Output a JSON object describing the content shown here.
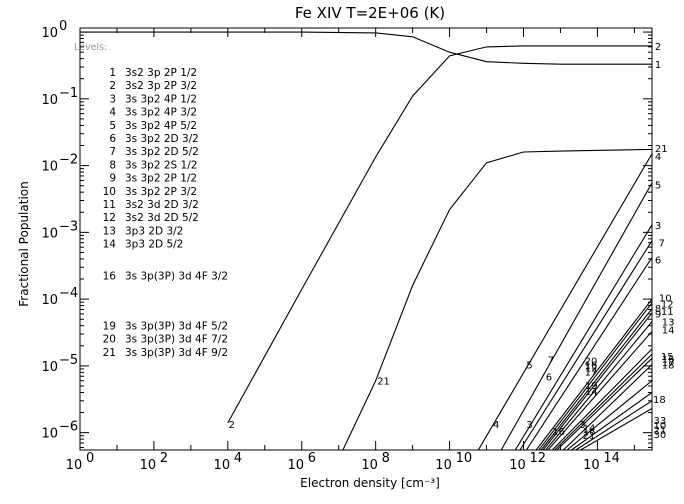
{
  "chart_data": {
    "type": "line",
    "title": "Fe XIV T=2E+06 (K)",
    "xlabel": "Electron density [cm⁻³]",
    "ylabel": "Fractional Population",
    "x_scale": "log",
    "y_scale": "log",
    "xlim": [
      1,
      3000000000000000.0
    ],
    "ylim": [
      5.5e-07,
      1.15
    ],
    "x_ticks": [
      {
        "value": 1,
        "base": "10",
        "exp": "0"
      },
      {
        "value": 100.0,
        "base": "10",
        "exp": "2"
      },
      {
        "value": 10000.0,
        "base": "10",
        "exp": "4"
      },
      {
        "value": 1000000.0,
        "base": "10",
        "exp": "6"
      },
      {
        "value": 100000000.0,
        "base": "10",
        "exp": "8"
      },
      {
        "value": 10000000000.0,
        "base": "10",
        "exp": "10"
      },
      {
        "value": 1000000000000.0,
        "base": "10",
        "exp": "12"
      },
      {
        "value": 100000000000000.0,
        "base": "10",
        "exp": "14"
      }
    ],
    "y_ticks": [
      {
        "value": 1,
        "base": "10",
        "exp": "0"
      },
      {
        "value": 0.1,
        "base": "10",
        "exp": "−1"
      },
      {
        "value": 0.01,
        "base": "10",
        "exp": "−2"
      },
      {
        "value": 0.001,
        "base": "10",
        "exp": "−3"
      },
      {
        "value": 0.0001,
        "base": "10",
        "exp": "−4"
      },
      {
        "value": 1e-05,
        "base": "10",
        "exp": "−5"
      },
      {
        "value": 1e-06,
        "base": "10",
        "exp": "−6"
      }
    ],
    "legend": {
      "heading": "Levels:",
      "entries": [
        {
          "level": "1",
          "config": "3s2 3p 2P 1/2",
          "gap_before": 0
        },
        {
          "level": "2",
          "config": "3s2 3p 2P 3/2",
          "gap_before": 0
        },
        {
          "level": "3",
          "config": "3s 3p2 4P 1/2",
          "gap_before": 0
        },
        {
          "level": "4",
          "config": "3s 3p2 4P 3/2",
          "gap_before": 0
        },
        {
          "level": "5",
          "config": "3s 3p2 4P 5/2",
          "gap_before": 0
        },
        {
          "level": "6",
          "config": "3s 3p2 2D 3/2",
          "gap_before": 0
        },
        {
          "level": "7",
          "config": "3s 3p2 2D 5/2",
          "gap_before": 0
        },
        {
          "level": "8",
          "config": "3s 3p2 2S 1/2",
          "gap_before": 0
        },
        {
          "level": "9",
          "config": "3s 3p2 2P 1/2",
          "gap_before": 0
        },
        {
          "level": "10",
          "config": "3s 3p2 2P 3/2",
          "gap_before": 0
        },
        {
          "level": "11",
          "config": "3s2 3d 2D 3/2",
          "gap_before": 0
        },
        {
          "level": "12",
          "config": "3s2 3d 2D 5/2",
          "gap_before": 0
        },
        {
          "level": "13",
          "config": "3p3 2D 3/2",
          "gap_before": 0
        },
        {
          "level": "14",
          "config": "3p3 2D 5/2",
          "gap_before": 0
        },
        {
          "level": "16",
          "config": "3s 3p(3P) 3d 4F 3/2",
          "gap_before": 1
        },
        {
          "level": "19",
          "config": "3s 3p(3P) 3d 4F 5/2",
          "gap_before": 2
        },
        {
          "level": "20",
          "config": "3s 3p(3P) 3d 4F 7/2",
          "gap_before": 0
        },
        {
          "level": "21",
          "config": "3s 3p(3P) 3d 4F 9/2",
          "gap_before": 0
        }
      ]
    },
    "series": [
      {
        "name": "1",
        "x": [
          1,
          1000000.0,
          100000000.0,
          1000000000.0,
          10000000000.0,
          100000000000.0,
          1000000000000.0,
          10000000000000.0,
          3000000000000000.0
        ],
        "y": [
          1.0,
          1.0,
          0.97,
          0.85,
          0.5,
          0.36,
          0.34,
          0.33,
          0.33
        ]
      },
      {
        "name": "2",
        "x": [
          10000.0,
          1000000.0,
          100000000.0,
          1000000000.0,
          10000000000.0,
          100000000000.0,
          1000000000000.0,
          10000000000000.0,
          3000000000000000.0
        ],
        "y": [
          1.4e-06,
          0.00014,
          0.0135,
          0.11,
          0.44,
          0.6,
          0.62,
          0.62,
          0.62
        ]
      },
      {
        "name": "21",
        "x": [
          13000000.0,
          100000000.0,
          1000000000.0,
          10000000000.0,
          100000000000.0,
          1000000000000.0,
          10000000000000.0,
          3000000000000000.0
        ],
        "y": [
          5.5e-07,
          6e-06,
          0.00016,
          0.0022,
          0.011,
          0.016,
          0.0165,
          0.0175
        ]
      },
      {
        "name": "4",
        "x": [
          60000000000.0,
          3000000000000000.0
        ],
        "y": [
          5.5e-07,
          0.015
        ]
      },
      {
        "name": "5",
        "x": [
          250000000000.0,
          3000000000000000.0
        ],
        "y": [
          5.5e-07,
          0.0055
        ]
      },
      {
        "name": "3",
        "x": [
          600000000000.0,
          3000000000000000.0
        ],
        "y": [
          5.5e-07,
          0.0013
        ]
      },
      {
        "name": "7",
        "x": [
          800000000000.0,
          3000000000000000.0
        ],
        "y": [
          5.5e-07,
          0.00075
        ]
      },
      {
        "name": "6",
        "x": [
          1200000000000.0,
          3000000000000000.0
        ],
        "y": [
          5.5e-07,
          0.00042
        ]
      },
      {
        "name": "10",
        "x": [
          2200000000000.0,
          3000000000000000.0
        ],
        "y": [
          5.5e-07,
          0.0001
        ]
      },
      {
        "name": "12",
        "x": [
          2600000000000.0,
          3000000000000000.0
        ],
        "y": [
          5.5e-07,
          8.8e-05
        ]
      },
      {
        "name": "8",
        "x": [
          3000000000000.0,
          3000000000000000.0
        ],
        "y": [
          5.5e-07,
          7.2e-05
        ]
      },
      {
        "name": "9",
        "x": [
          3400000000000.0,
          3000000000000000.0
        ],
        "y": [
          5.5e-07,
          6.2e-05
        ]
      },
      {
        "name": "11",
        "x": [
          4000000000000.0,
          3000000000000000.0
        ],
        "y": [
          5.5e-07,
          4.6e-05
        ]
      },
      {
        "name": "14",
        "x": [
          4600000000000.0,
          3000000000000000.0
        ],
        "y": [
          5.5e-07,
          3.3e-05
        ]
      },
      {
        "name": "13",
        "x": [
          6000000000000.0,
          3000000000000000.0
        ],
        "y": [
          5.5e-07,
          1.8e-05
        ]
      },
      {
        "name": "15",
        "x": [
          7000000000000.0,
          3000000000000000.0
        ],
        "y": [
          5.5e-07,
          1.5e-05
        ]
      },
      {
        "name": "16",
        "x": [
          8000000000000.0,
          3000000000000000.0
        ],
        "y": [
          5.5e-07,
          1.3e-05
        ]
      },
      {
        "name": "18",
        "x": [
          12000000000000.0,
          3000000000000000.0
        ],
        "y": [
          5.5e-07,
          1.05e-05
        ]
      },
      {
        "name": "20",
        "x": [
          15000000000000.0,
          3000000000000000.0
        ],
        "y": [
          5.5e-07,
          6e-06
        ]
      },
      {
        "name": "17",
        "x": [
          20000000000000.0,
          3000000000000000.0
        ],
        "y": [
          5.5e-07,
          4e-06
        ]
      },
      {
        "name": "19",
        "x": [
          26000000000000.0,
          3000000000000000.0
        ],
        "y": [
          5.5e-07,
          3e-06
        ]
      },
      {
        "name": "30",
        "x": [
          35000000000000.0,
          3000000000000000.0
        ],
        "y": [
          5.5e-07,
          2.3e-06
        ]
      }
    ],
    "annotations": [
      {
        "text": "1",
        "x": 3600000000000000.0,
        "y": 0.33
      },
      {
        "text": "2",
        "x": 3600000000000000.0,
        "y": 0.62
      },
      {
        "text": "21",
        "x": 3600000000000000.0,
        "y": 0.0185
      },
      {
        "text": "4",
        "x": 3600000000000000.0,
        "y": 0.014
      },
      {
        "text": "5",
        "x": 3600000000000000.0,
        "y": 0.0052
      },
      {
        "text": "3",
        "x": 3600000000000000.0,
        "y": 0.0013
      },
      {
        "text": "7",
        "x": 4500000000000000.0,
        "y": 0.0007
      },
      {
        "text": "6",
        "x": 3600000000000000.0,
        "y": 0.00039
      },
      {
        "text": "10",
        "x": 4600000000000000.0,
        "y": 0.000105
      },
      {
        "text": "12",
        "x": 5200000000000000.0,
        "y": 8.6e-05
      },
      {
        "text": "8",
        "x": 3600000000000000.0,
        "y": 7.4e-05
      },
      {
        "text": "9",
        "x": 3600000000000000.0,
        "y": 6.1e-05
      },
      {
        "text": "11",
        "x": 5200000000000000.0,
        "y": 6.6e-05
      },
      {
        "text": "13",
        "x": 5500000000000000.0,
        "y": 4.6e-05
      },
      {
        "text": "14",
        "x": 5500000000000000.0,
        "y": 3.5e-05
      },
      {
        "text": "15",
        "x": 5200000000000000.0,
        "y": 1.4e-05
      },
      {
        "text": "16",
        "x": 5500000000000000.0,
        "y": 1.28e-05
      },
      {
        "text": "17",
        "x": 5500000000000000.0,
        "y": 1.15e-05
      },
      {
        "text": "18",
        "x": 5500000000000000.0,
        "y": 1.05e-05
      },
      {
        "text": "5",
        "x": 1200000000000.0,
        "y": 1.05e-05
      },
      {
        "text": "7",
        "x": 4500000000000.0,
        "y": 1.25e-05
      },
      {
        "text": "6",
        "x": 4000000000000.0,
        "y": 6.9e-06
      },
      {
        "text": "20",
        "x": 45000000000000.0,
        "y": 1.2e-05
      },
      {
        "text": "16",
        "x": 45000000000000.0,
        "y": 1.05e-05
      },
      {
        "text": "12",
        "x": 46000000000000.0,
        "y": 9.5e-06
      },
      {
        "text": "17",
        "x": 45000000000000.0,
        "y": 8.2e-06
      },
      {
        "text": "19",
        "x": 46000000000000.0,
        "y": 5.2e-06
      },
      {
        "text": "14",
        "x": 46000000000000.0,
        "y": 4.2e-06
      },
      {
        "text": "18",
        "x": 3200000000000000.0,
        "y": 3.2e-06
      },
      {
        "text": "4",
        "x": 150000000000.0,
        "y": 1.35e-06
      },
      {
        "text": "3",
        "x": 1200000000000.0,
        "y": 1.35e-06
      },
      {
        "text": "16",
        "x": 6000000000000.0,
        "y": 1.05e-06
      },
      {
        "text": "3",
        "x": 32000000000000.0,
        "y": 1.35e-06
      },
      {
        "text": "14",
        "x": 40000000000000.0,
        "y": 1.2e-06
      },
      {
        "text": "16",
        "x": 40000000000000.0,
        "y": 1.05e-06
      },
      {
        "text": "21",
        "x": 40000000000000.0,
        "y": 9.3e-07
      },
      {
        "text": "33",
        "x": 3300000000000000.0,
        "y": 1.55e-06
      },
      {
        "text": "10",
        "x": 3300000000000000.0,
        "y": 1.3e-06
      },
      {
        "text": "21",
        "x": 3300000000000000.0,
        "y": 1.12e-06
      },
      {
        "text": "30",
        "x": 3300000000000000.0,
        "y": 9.5e-07
      },
      {
        "text": "2",
        "x": 10500.0,
        "y": 1.35e-06
      },
      {
        "text": "21",
        "x": 110000000.0,
        "y": 6e-06
      }
    ]
  }
}
